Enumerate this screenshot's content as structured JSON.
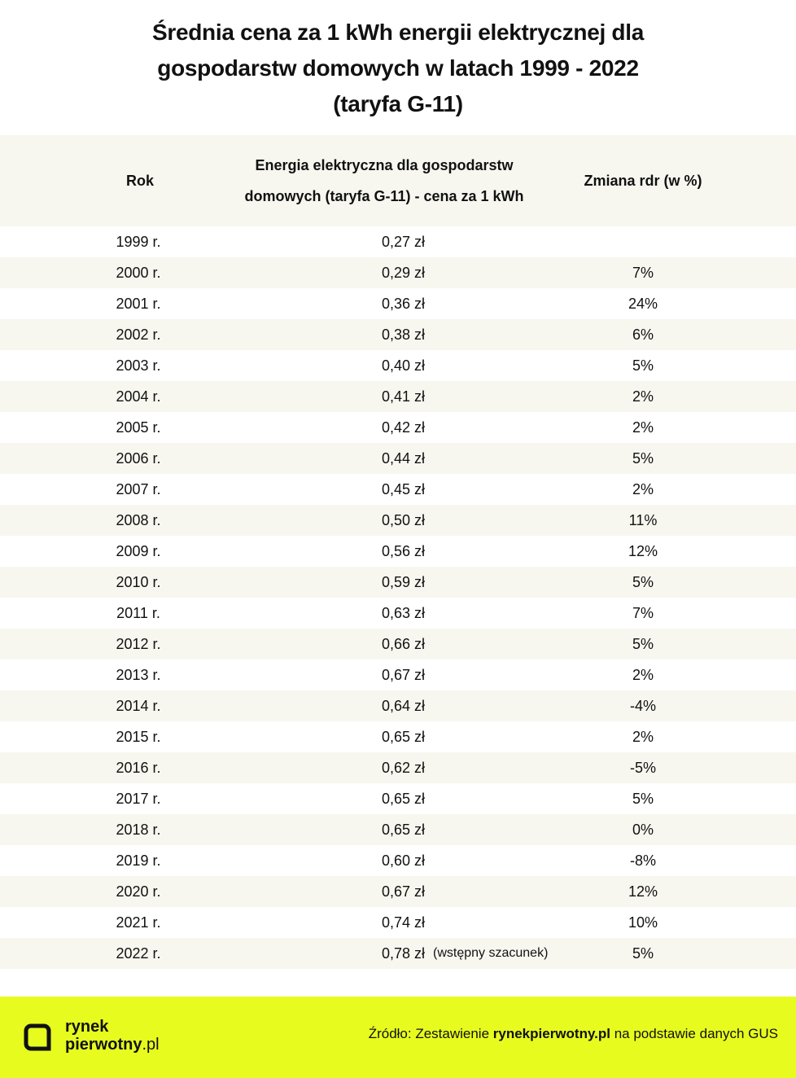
{
  "title": {
    "line1": "Średnia cena za 1 kWh energii elektrycznej dla",
    "line2": "gospodarstw domowych w latach 1999 - 2022",
    "line3": "(taryfa G-11)"
  },
  "table": {
    "headers": {
      "year": "Rok",
      "price_line1": "Energia elektryczna dla gospodarstw",
      "price_line2": "domowych (taryfa G-11) - cena za 1 kWh",
      "change": "Zmiana rdr (w %)"
    },
    "rows": [
      {
        "year": "1999 r.",
        "price": "0,27 zł",
        "note": "",
        "change": ""
      },
      {
        "year": "2000 r.",
        "price": "0,29 zł",
        "note": "",
        "change": "7%"
      },
      {
        "year": "2001 r.",
        "price": "0,36 zł",
        "note": "",
        "change": "24%"
      },
      {
        "year": "2002 r.",
        "price": "0,38 zł",
        "note": "",
        "change": "6%"
      },
      {
        "year": "2003 r.",
        "price": "0,40 zł",
        "note": "",
        "change": "5%"
      },
      {
        "year": "2004 r.",
        "price": "0,41 zł",
        "note": "",
        "change": "2%"
      },
      {
        "year": "2005 r.",
        "price": "0,42 zł",
        "note": "",
        "change": "2%"
      },
      {
        "year": "2006 r.",
        "price": "0,44 zł",
        "note": "",
        "change": "5%"
      },
      {
        "year": "2007 r.",
        "price": "0,45 zł",
        "note": "",
        "change": "2%"
      },
      {
        "year": "2008 r.",
        "price": "0,50 zł",
        "note": "",
        "change": "11%"
      },
      {
        "year": "2009 r.",
        "price": "0,56 zł",
        "note": "",
        "change": "12%"
      },
      {
        "year": "2010 r.",
        "price": "0,59 zł",
        "note": "",
        "change": "5%"
      },
      {
        "year": "2011 r.",
        "price": "0,63 zł",
        "note": "",
        "change": "7%"
      },
      {
        "year": "2012 r.",
        "price": "0,66 zł",
        "note": "",
        "change": "5%"
      },
      {
        "year": "2013 r.",
        "price": "0,67 zł",
        "note": "",
        "change": "2%"
      },
      {
        "year": "2014 r.",
        "price": "0,64 zł",
        "note": "",
        "change": "-4%"
      },
      {
        "year": "2015 r.",
        "price": "0,65 zł",
        "note": "",
        "change": "2%"
      },
      {
        "year": "2016 r.",
        "price": "0,62 zł",
        "note": "",
        "change": "-5%"
      },
      {
        "year": "2017 r.",
        "price": "0,65 zł",
        "note": "",
        "change": "5%"
      },
      {
        "year": "2018 r.",
        "price": "0,65 zł",
        "note": "",
        "change": "0%"
      },
      {
        "year": "2019 r.",
        "price": "0,60 zł",
        "note": "",
        "change": "-8%"
      },
      {
        "year": "2020 r.",
        "price": "0,67 zł",
        "note": "",
        "change": "12%"
      },
      {
        "year": "2021 r.",
        "price": "0,74 zł",
        "note": "",
        "change": "10%"
      },
      {
        "year": "2022 r.",
        "price": "0,78 zł",
        "note": "(wstępny szacunek)",
        "change": "5%"
      }
    ]
  },
  "footer": {
    "logo_line1": "rynek",
    "logo_line2": "pierwotny",
    "logo_tld": ".pl",
    "source_prefix": "Źródło: Zestawienie ",
    "source_bold": "rynekpierwotny.pl",
    "source_suffix": " na podstawie danych GUS",
    "background": "#e7fb1e",
    "logo_icon": "rounded-square-logo-icon"
  }
}
